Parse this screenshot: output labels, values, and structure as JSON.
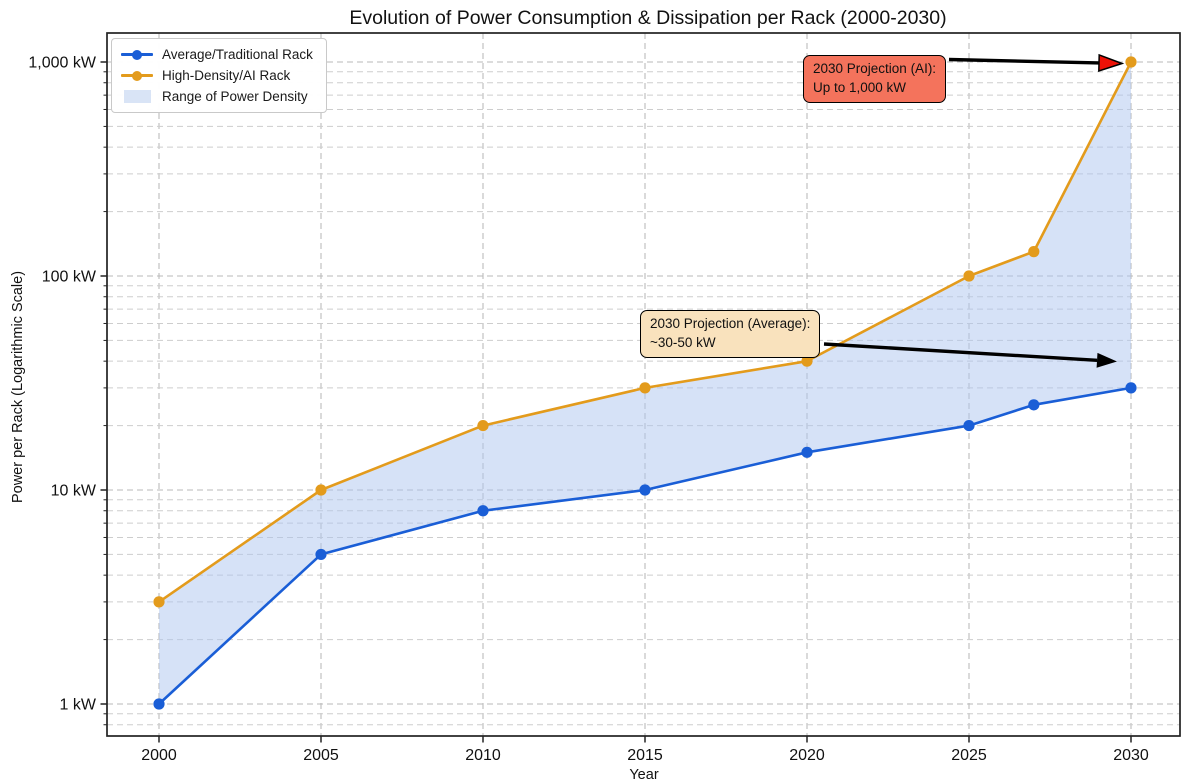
{
  "title": "Evolution of Power Consumption & Dissipation per Rack (2000-2030)",
  "axes": {
    "xlabel": "Year",
    "ylabel": "Power per Rack (Logarithmic Scale)"
  },
  "legend": {
    "position": "upper left",
    "items": [
      {
        "label": "Average/Traditional Rack",
        "marker": "line-dot",
        "color": "#1a5ed6"
      },
      {
        "label": "High-Density/AI Rack",
        "marker": "line-dot",
        "color": "#e39b1c"
      },
      {
        "label": "Range of Power Density",
        "marker": "patch",
        "color": "#d9e4f6"
      }
    ]
  },
  "chart_data": {
    "type": "line",
    "title": "Evolution of Power Consumption & Dissipation per Rack (2000-2030)",
    "xlabel": "Year",
    "ylabel": "Power per Rack (Logarithmic Scale)",
    "yscale": "log",
    "grid": {
      "style": "dashed",
      "which": "both"
    },
    "x": [
      2000,
      2005,
      2010,
      2015,
      2020,
      2025,
      2027,
      2030
    ],
    "series": [
      {
        "name": "Average/Traditional Rack",
        "color": "#1a5ed6",
        "values": [
          1,
          5,
          8,
          10,
          15,
          20,
          25,
          30
        ]
      },
      {
        "name": "High-Density/AI Rack",
        "color": "#e39b1c",
        "values": [
          3,
          10,
          20,
          30,
          40,
          100,
          130,
          1000
        ]
      }
    ],
    "fill_between": {
      "label": "Range of Power Density",
      "color": "#aec6f0",
      "opacity": 0.5
    },
    "xticks": [
      {
        "v": 2000,
        "label": "2000"
      },
      {
        "v": 2005,
        "label": "2005"
      },
      {
        "v": 2010,
        "label": "2010"
      },
      {
        "v": 2015,
        "label": "2015"
      },
      {
        "v": 2020,
        "label": "2020"
      },
      {
        "v": 2025,
        "label": "2025"
      },
      {
        "v": 2030,
        "label": "2030"
      }
    ],
    "yticks": [
      {
        "v": 1,
        "label": "1 kW"
      },
      {
        "v": 10,
        "label": "10 kW"
      },
      {
        "v": 100,
        "label": "100 kW"
      },
      {
        "v": 1000,
        "label": "1,000 kW"
      }
    ],
    "xlim": [
      1998.4,
      2031.6
    ],
    "ylim": [
      0.71,
      1370
    ],
    "legend_position": "upper left"
  },
  "annotations": {
    "average": {
      "line1": "2030 Projection (Average):",
      "line2": "~30-50 kW",
      "box_color": "#f9e2bd",
      "border_color": "#000000",
      "arrow_color": "#000000",
      "arrowhead_color": "#000000"
    },
    "ai": {
      "line1": "2030 Projection (AI):",
      "line2": "Up to 1,000 kW",
      "box_color": "#f4735c",
      "border_color": "#000000",
      "arrow_color": "#000000",
      "arrowhead_color": "#ed1207"
    }
  }
}
